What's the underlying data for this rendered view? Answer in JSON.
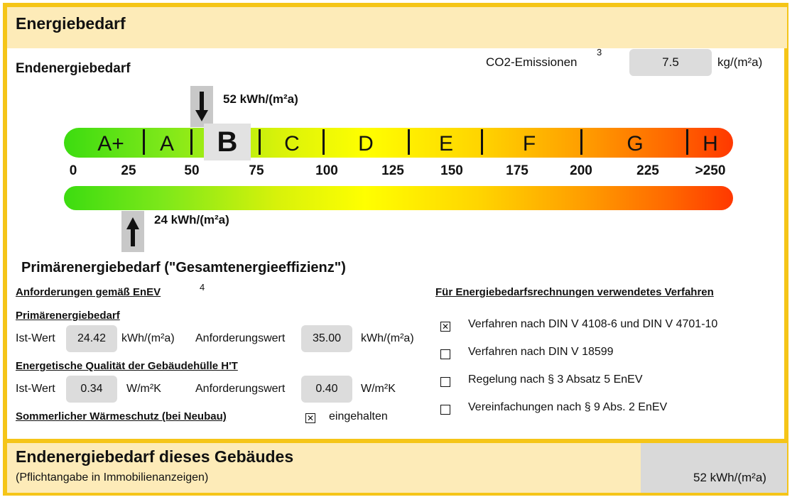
{
  "header": {
    "title": "Energiebedarf"
  },
  "endenergie": {
    "title": "Endenergiebedarf",
    "co2_label": "CO2-Emissionen",
    "co2_footnote": "3",
    "co2_value": "7.5",
    "co2_unit": "kg/(m²a)",
    "end_value_label": "52 kWh/(m²a)"
  },
  "scale": {
    "classes": [
      "A+",
      "A",
      "B",
      "C",
      "D",
      "E",
      "F",
      "G",
      "H"
    ],
    "highlighted_class": "B",
    "ticks": [
      "0",
      "25",
      "50",
      "75",
      "100",
      "125",
      "150",
      "175",
      "200",
      "225",
      ">250"
    ],
    "primaer_value_label": "24 kWh/(m²a)"
  },
  "chart_data": {
    "type": "bar",
    "title": "",
    "categories": [
      "A+",
      "A",
      "B",
      "C",
      "D",
      "E",
      "F",
      "G",
      "H"
    ],
    "x": [
      0,
      25,
      50,
      75,
      100,
      125,
      150,
      175,
      200,
      225,
      250
    ],
    "endenergiebedarf": 52,
    "primaerenergiebedarf": 24,
    "unit": "kWh/(m²a)"
  },
  "primaer": {
    "title": "Primärenergiebedarf (\"Gesamtenergieeffizienz\")"
  },
  "anforderungen": {
    "title": "Anforderungen gemäß EnEV",
    "footnote": "4",
    "primaer_sub": "Primärenergiebedarf",
    "ist_label": "Ist-Wert",
    "ist_value": "24.42",
    "ist_unit": "kWh/(m²a)",
    "anf_label": "Anforderungswert",
    "anf_value": "35.00",
    "anf_unit": "kWh/(m²a)",
    "huelle_sub": "Energetische Qualität der Gebäudehülle H'T",
    "ht_ist_label": "Ist-Wert",
    "ht_ist_value": "0.34",
    "ht_ist_unit": "W/m²K",
    "ht_anf_label": "Anforderungswert",
    "ht_anf_value": "0.40",
    "ht_anf_unit": "W/m²K",
    "sommer_label": "Sommerlicher Wärmeschutz (bei Neubau)",
    "sommer_checked": true,
    "sommer_text": "eingehalten"
  },
  "verfahren": {
    "title": "Für Energiebedarfsrechnungen verwendetes Verfahren",
    "options": [
      {
        "label": "Verfahren nach DIN V 4108-6 und DIN V 4701-10",
        "checked": true
      },
      {
        "label": "Verfahren nach DIN V 18599",
        "checked": false
      },
      {
        "label": "Regelung nach § 3 Absatz 5 EnEV",
        "checked": false
      },
      {
        "label": "Vereinfachungen nach § 9 Abs. 2 EnEV",
        "checked": false
      }
    ]
  },
  "footer": {
    "title": "Endenergiebedarf dieses Gebäudes",
    "subtitle": "(Pflichtangabe in Immobilienanzeigen)",
    "value": "52 kWh/(m²a)"
  }
}
